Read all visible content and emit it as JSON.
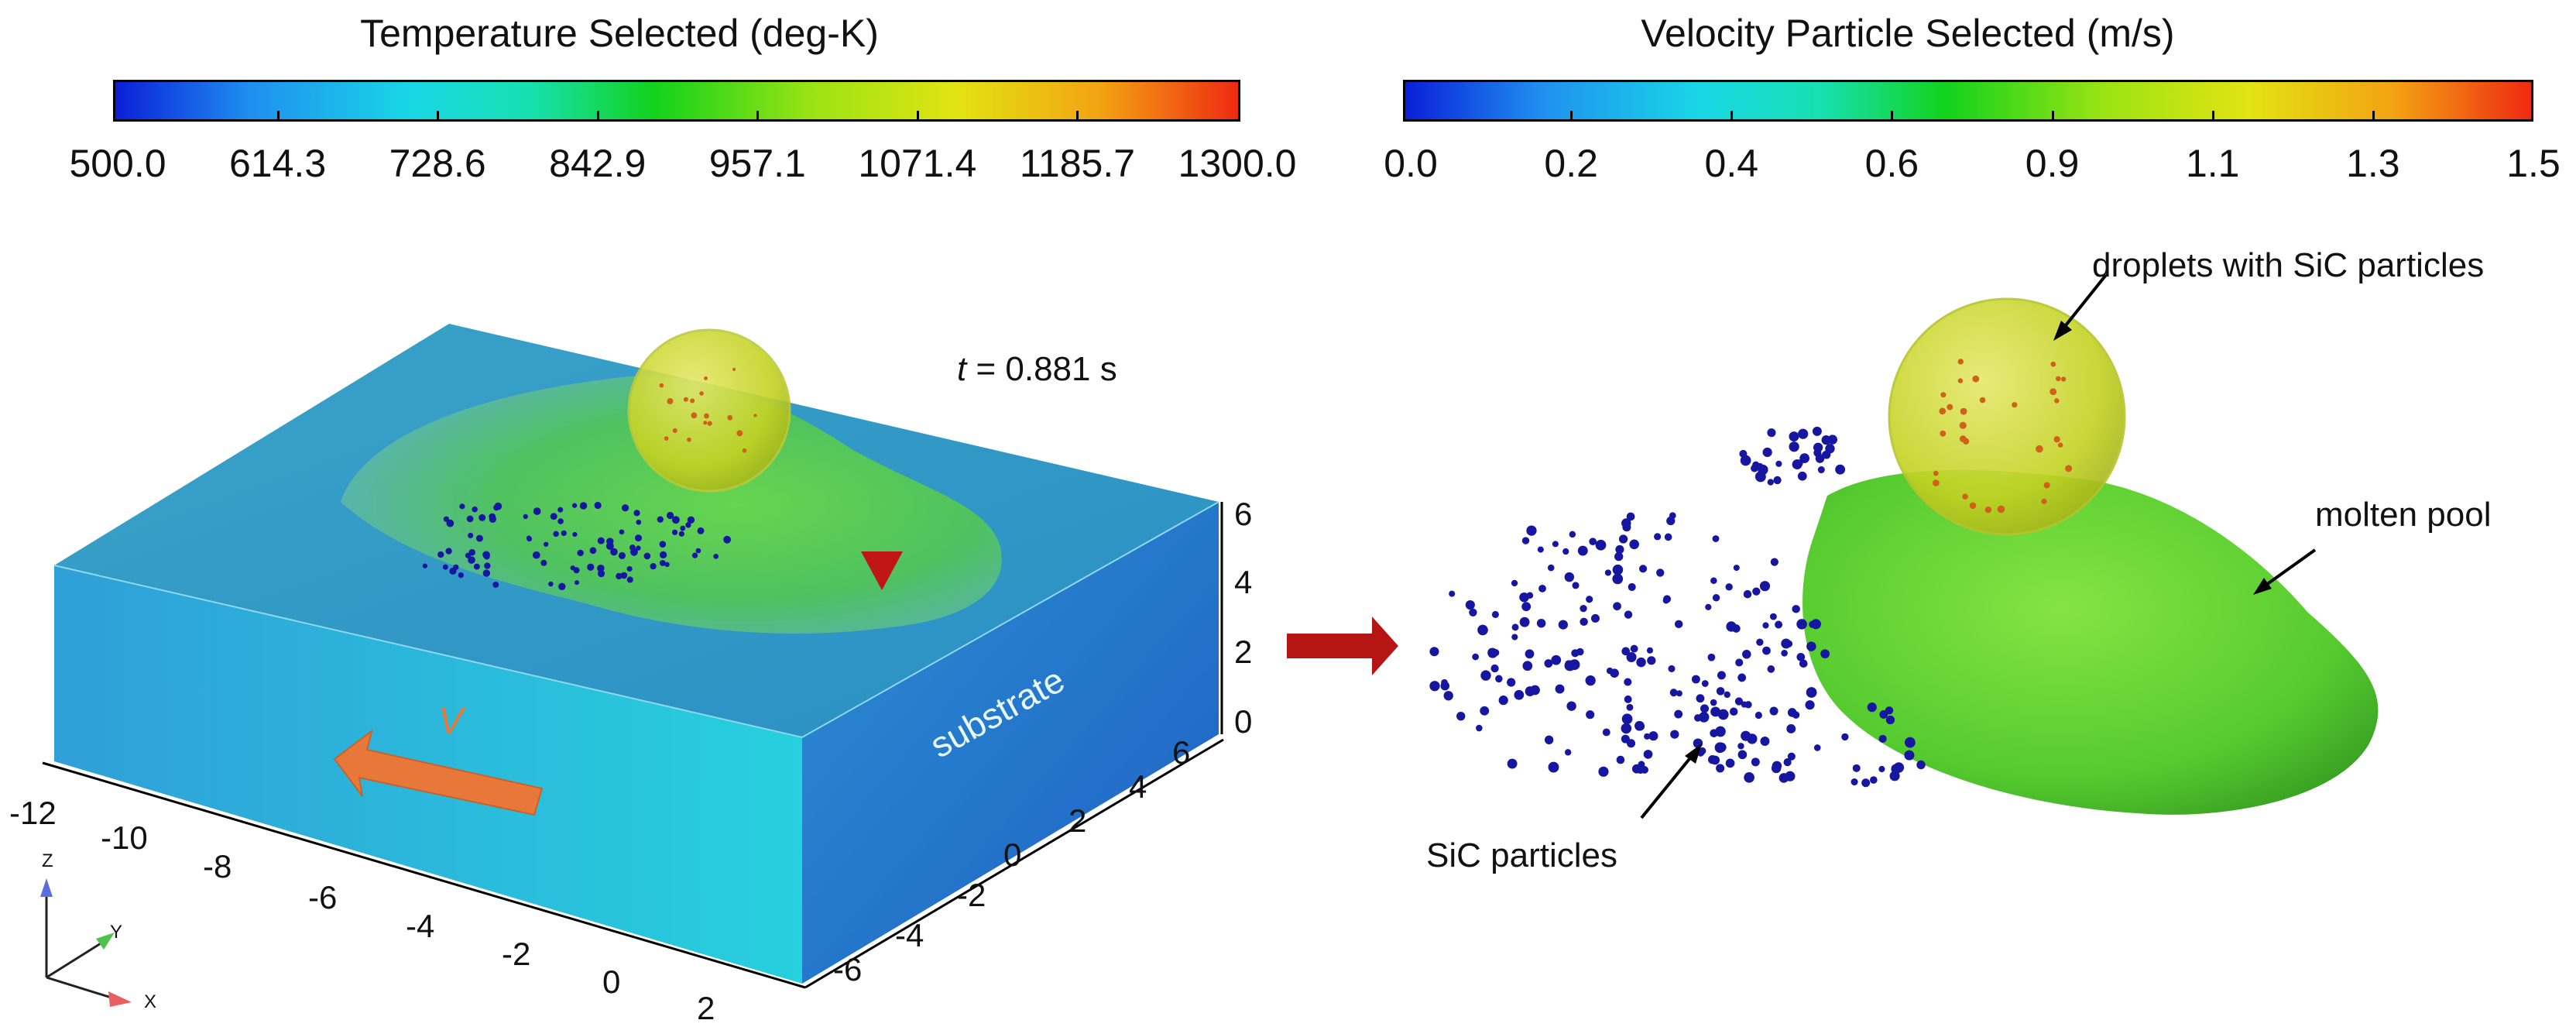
{
  "temperature_colorbar": {
    "title": "Temperature Selected (deg-K)",
    "ticks": [
      "500.0",
      "614.3",
      "728.6",
      "842.9",
      "957.1",
      "1071.4",
      "1185.7",
      "1300.0"
    ]
  },
  "velocity_colorbar": {
    "title": "Velocity Particle Selected (m/s)",
    "ticks": [
      "0.0",
      "0.2",
      "0.4",
      "0.6",
      "0.9",
      "1.1",
      "1.3",
      "1.5"
    ]
  },
  "left_panel": {
    "time_label_var": "t",
    "time_label_rest": " = 0.881 s",
    "substrate_label": "substrate",
    "velocity_label": "V",
    "z_ticks": [
      "6",
      "4",
      "2",
      "0"
    ],
    "x_ticks": [
      "-12",
      "-10",
      "-8",
      "-6",
      "-4",
      "-2",
      "0",
      "2"
    ],
    "y_ticks": [
      "-6",
      "-4",
      "-2",
      "0",
      "2",
      "4",
      "6"
    ],
    "axes": {
      "z": "Z",
      "y": "Y",
      "x": "X"
    }
  },
  "right_panel": {
    "droplet_label": "droplets with SiC particles",
    "pool_label": "molten pool",
    "particles_label": "SiC particles"
  },
  "colors": {
    "colormap": [
      "#0a1fd8",
      "#1f8fef",
      "#19d6e6",
      "#17e0b0",
      "#12d21c",
      "#9be313",
      "#e3e312",
      "#f3a112",
      "#ef2a12"
    ],
    "substrate": "#2fa6d6",
    "pool": "#55cc33",
    "particle": "#1616a0",
    "arrow": "#b51515",
    "velocity_arrow": "#e8783a"
  }
}
